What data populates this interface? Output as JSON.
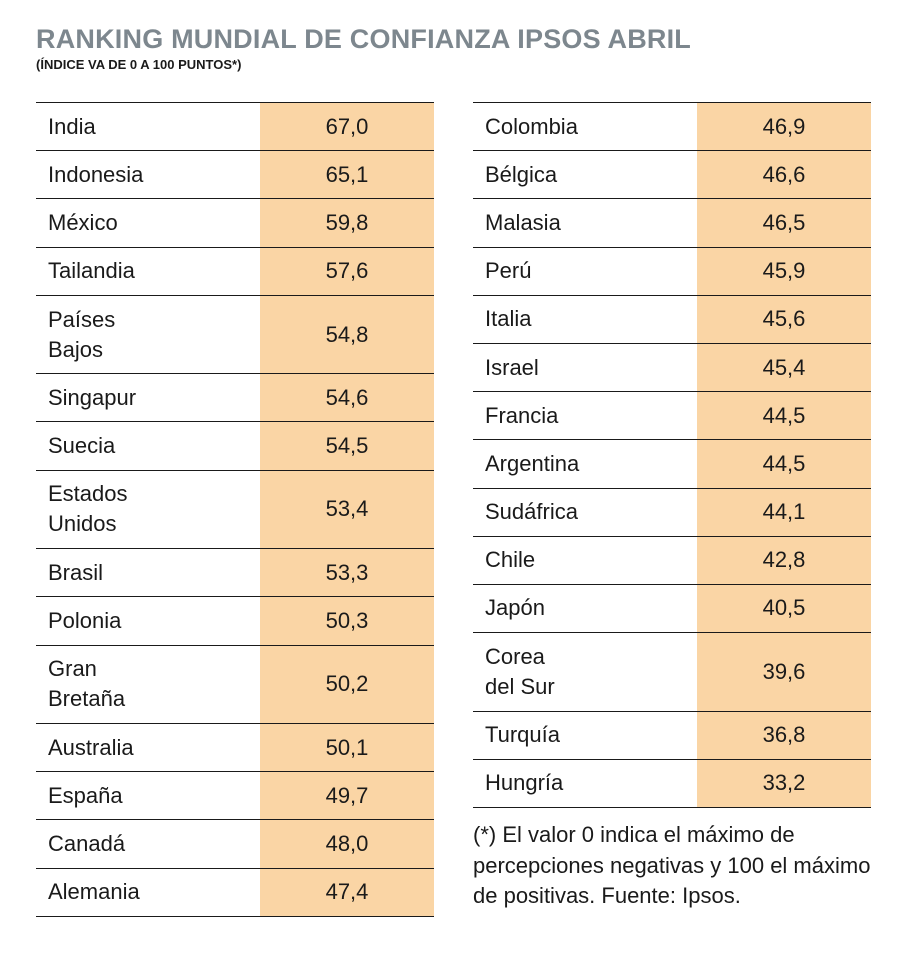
{
  "title": "RANKING MUNDIAL DE CONFIANZA IPSOS ABRIL",
  "subtitle": "(ÍNDICE VA DE 0 A 100 PUNTOS*)",
  "note": "(*) El valor 0 indica el máximo de percepciones negativas y 100 el máximo de positivas. Fuente: Ipsos.",
  "colors": {
    "value_cell": "#fad5a5",
    "title": "#7d878e",
    "rule": "#1a1a1a"
  },
  "chart_data": {
    "type": "table",
    "title": "RANKING MUNDIAL DE CONFIANZA IPSOS ABRIL",
    "subtitle": "(ÍNDICE VA DE 0 A 100 PUNTOS*)",
    "rows_left": [
      {
        "country": "India",
        "value": "67,0"
      },
      {
        "country": "Indonesia",
        "value": "65,1"
      },
      {
        "country": "México",
        "value": "59,8"
      },
      {
        "country": "Tailandia",
        "value": "57,6"
      },
      {
        "country": "Países\nBajos",
        "value": "54,8"
      },
      {
        "country": "Singapur",
        "value": "54,6"
      },
      {
        "country": "Suecia",
        "value": "54,5"
      },
      {
        "country": "Estados\nUnidos",
        "value": "53,4"
      },
      {
        "country": "Brasil",
        "value": "53,3"
      },
      {
        "country": "Polonia",
        "value": "50,3"
      },
      {
        "country": "Gran\nBretaña",
        "value": "50,2"
      },
      {
        "country": "Australia",
        "value": "50,1"
      },
      {
        "country": "España",
        "value": "49,7"
      },
      {
        "country": "Canadá",
        "value": "48,0"
      },
      {
        "country": "Alemania",
        "value": "47,4"
      }
    ],
    "rows_right": [
      {
        "country": "Colombia",
        "value": "46,9"
      },
      {
        "country": "Bélgica",
        "value": "46,6"
      },
      {
        "country": "Malasia",
        "value": "46,5"
      },
      {
        "country": "Perú",
        "value": "45,9"
      },
      {
        "country": "Italia",
        "value": "45,6"
      },
      {
        "country": "Israel",
        "value": "45,4"
      },
      {
        "country": "Francia",
        "value": "44,5"
      },
      {
        "country": "Argentina",
        "value": "44,5"
      },
      {
        "country": "Sudáfrica",
        "value": "44,1"
      },
      {
        "country": "Chile",
        "value": "42,8"
      },
      {
        "country": "Japón",
        "value": "40,5"
      },
      {
        "country": "Corea\ndel Sur",
        "value": "39,6"
      },
      {
        "country": "Turquía",
        "value": "36,8"
      },
      {
        "country": "Hungría",
        "value": "33,2"
      }
    ]
  }
}
